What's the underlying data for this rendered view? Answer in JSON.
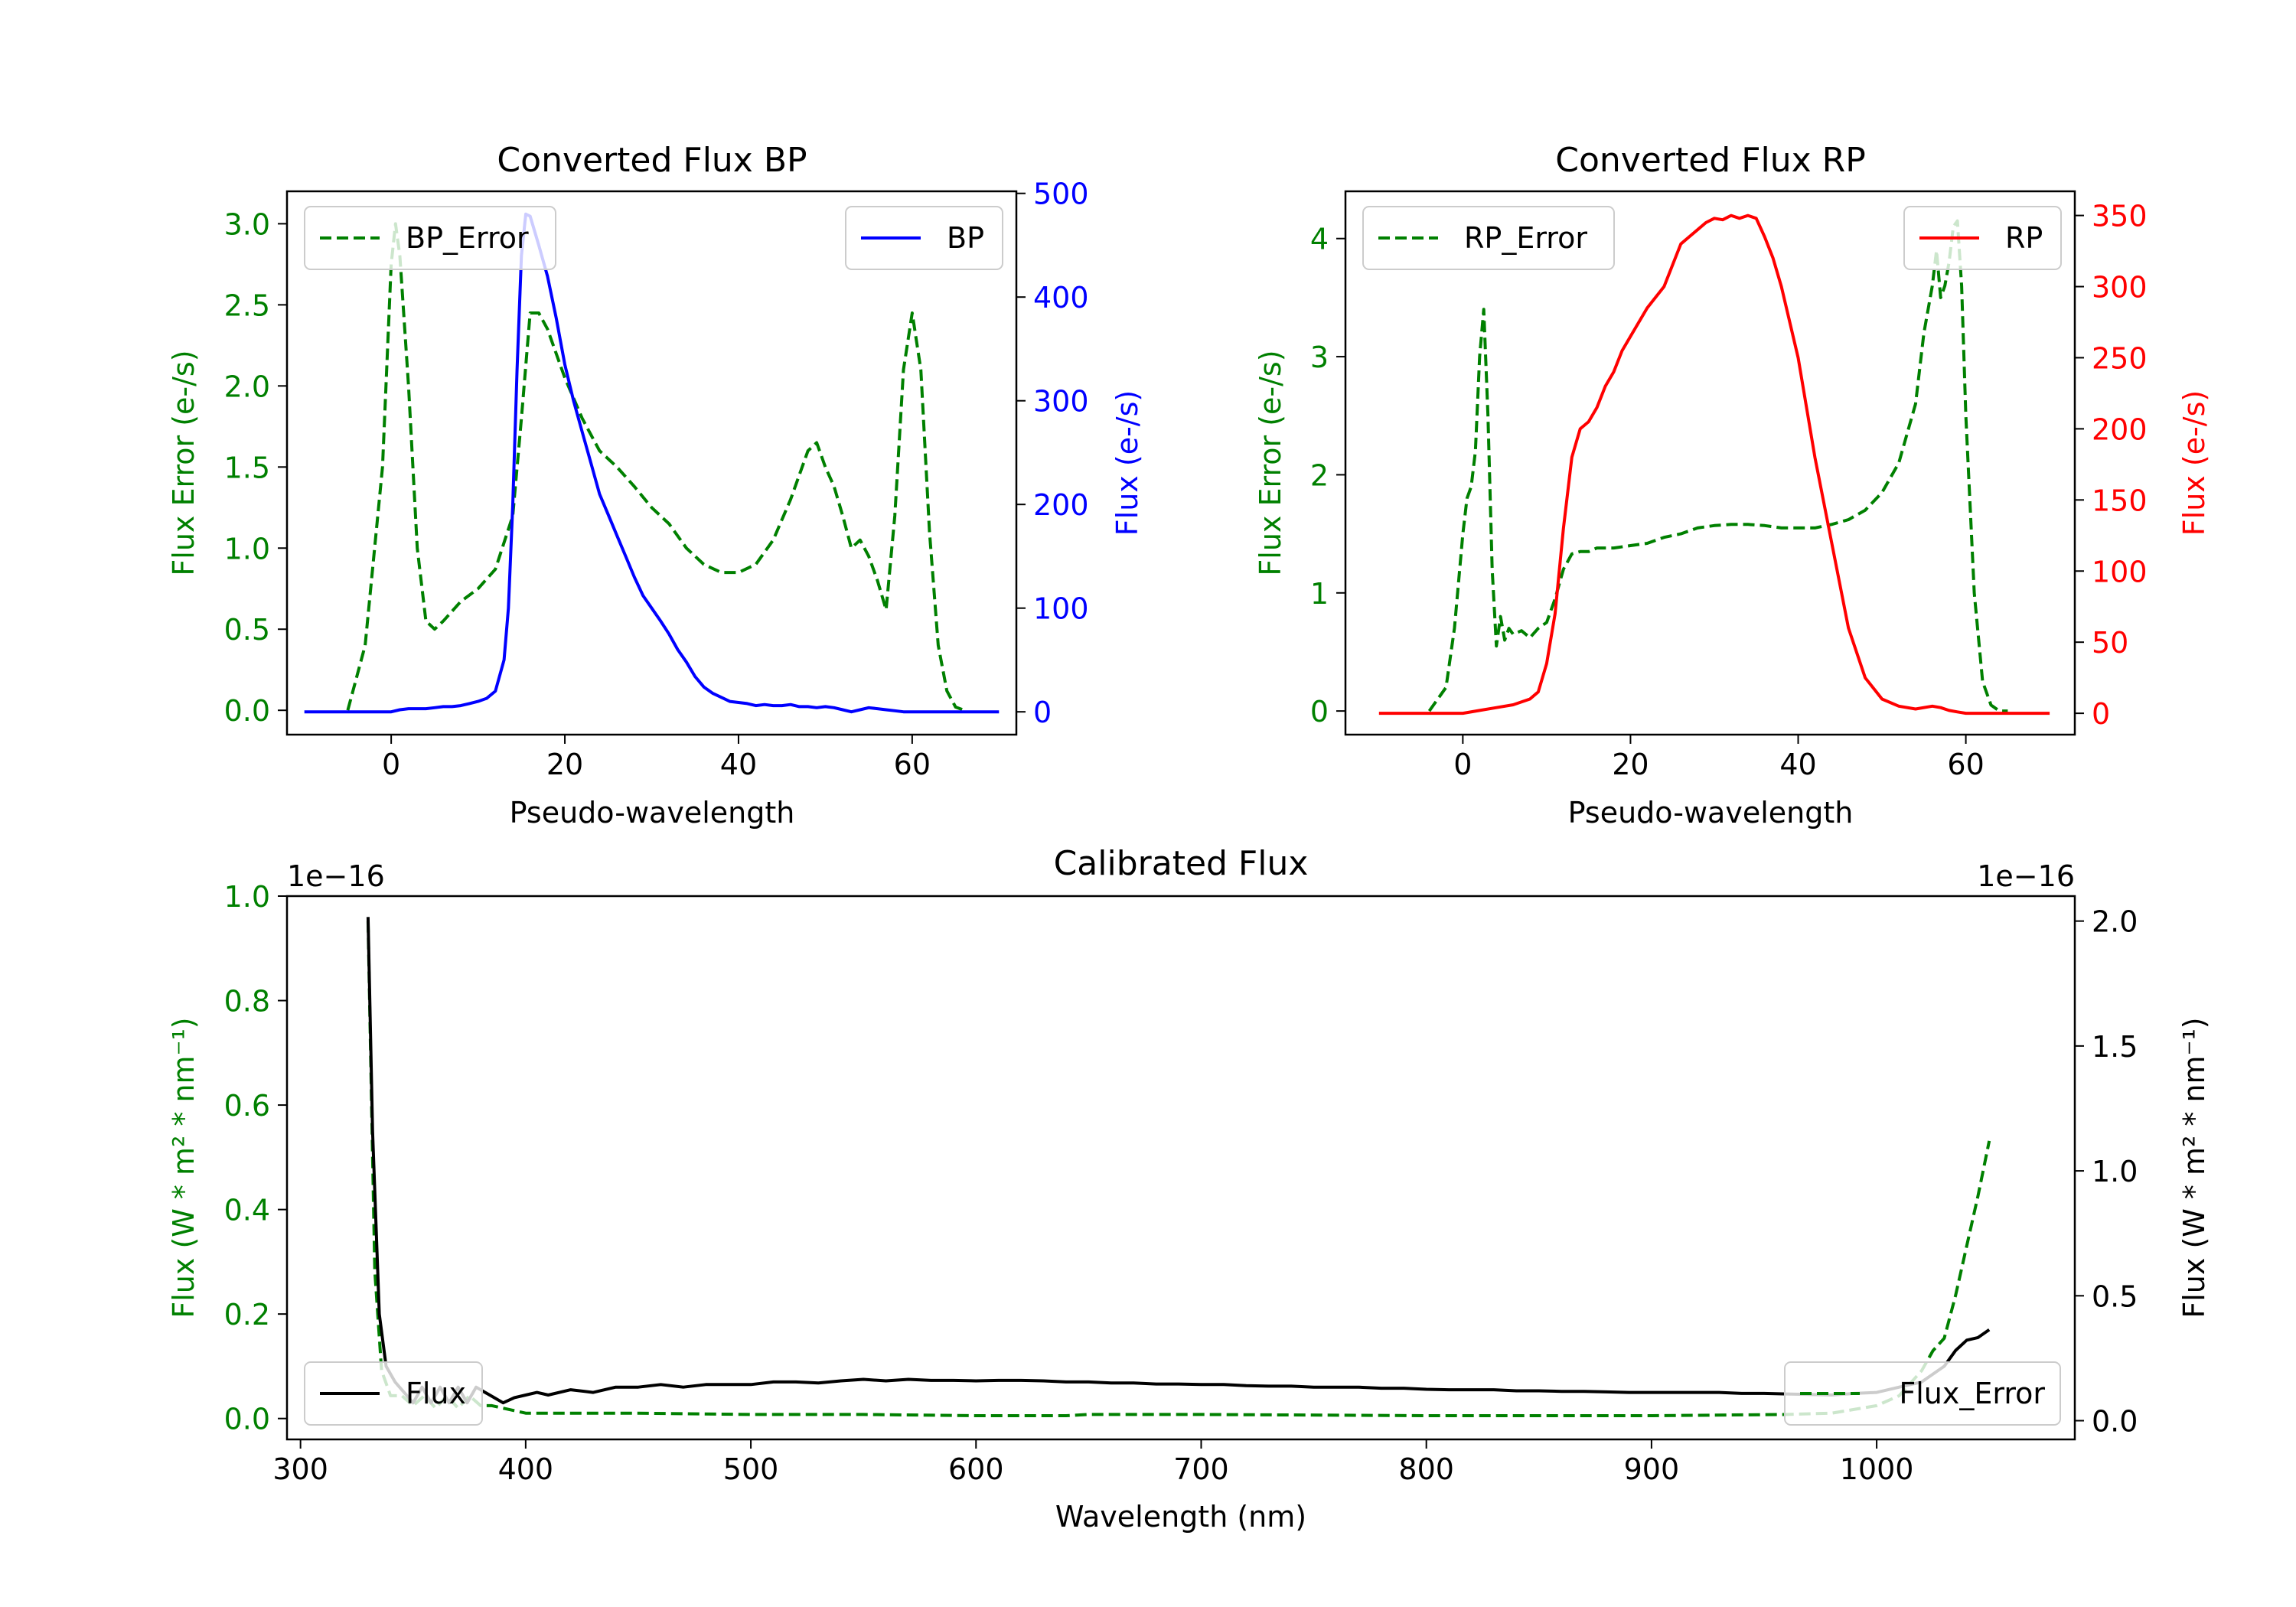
{
  "figure": {
    "background": "#ffffff"
  },
  "colors": {
    "green": "#008000",
    "blue": "#0000ff",
    "red": "#ff0000",
    "black": "#000000"
  },
  "chart_data": [
    {
      "id": "bp",
      "type": "line",
      "title": "Converted Flux BP",
      "xlabel": "Pseudo-wavelength",
      "ylabel_left": "Flux Error (e-/s)",
      "ylabel_right": "Flux (e-/s)",
      "xlim": [
        -12,
        72
      ],
      "ylim_left": [
        -0.15,
        3.2
      ],
      "ylim_right": [
        -22,
        502
      ],
      "xticks": [
        0,
        20,
        40,
        60
      ],
      "yticks_left": [
        0.0,
        0.5,
        1.0,
        1.5,
        2.0,
        2.5,
        3.0
      ],
      "yticks_right": [
        0,
        100,
        200,
        300,
        400,
        500
      ],
      "left_color": "#008000",
      "right_color": "#0000ff",
      "series": [
        {
          "name": "BP_Error",
          "axis": "left",
          "style": "dashed",
          "color": "#008000",
          "x": [
            -5,
            -3,
            -1,
            0,
            0.5,
            1,
            2,
            3,
            4,
            5,
            6,
            8,
            10,
            12,
            14,
            15,
            16,
            17,
            18,
            20,
            22,
            24,
            26,
            28,
            30,
            32,
            34,
            36,
            38,
            40,
            42,
            44,
            46,
            48,
            49,
            50,
            51,
            52,
            53,
            54,
            55,
            56,
            57,
            58,
            59,
            60,
            61,
            62,
            63,
            64,
            65,
            66
          ],
          "y": [
            0.0,
            0.4,
            1.5,
            2.75,
            3.0,
            2.8,
            2.0,
            1.0,
            0.55,
            0.5,
            0.55,
            0.67,
            0.75,
            0.87,
            1.2,
            1.8,
            2.45,
            2.45,
            2.35,
            2.05,
            1.8,
            1.6,
            1.5,
            1.38,
            1.25,
            1.15,
            1.0,
            0.9,
            0.85,
            0.85,
            0.9,
            1.05,
            1.3,
            1.6,
            1.65,
            1.5,
            1.38,
            1.2,
            1.0,
            1.05,
            0.95,
            0.8,
            0.62,
            1.2,
            2.1,
            2.45,
            2.1,
            1.1,
            0.4,
            0.12,
            0.02,
            0.0
          ]
        },
        {
          "name": "BP",
          "axis": "right",
          "style": "solid",
          "color": "#0000ff",
          "x": [
            -10,
            -5,
            -2,
            0,
            1,
            2,
            3,
            4,
            5,
            6,
            7,
            8,
            9,
            10,
            11,
            12,
            13,
            13.5,
            14,
            14.5,
            15,
            15.5,
            16,
            17,
            18,
            19,
            20,
            21,
            22,
            23,
            24,
            25,
            26,
            27,
            28,
            29,
            30,
            31,
            32,
            33,
            34,
            35,
            36,
            37,
            38,
            39,
            40,
            41,
            42,
            43,
            44,
            45,
            46,
            47,
            48,
            49,
            50,
            51,
            52,
            53,
            54,
            55,
            56,
            57,
            58,
            59,
            60,
            62,
            64,
            66,
            68,
            70
          ],
          "y": [
            0,
            0,
            0,
            0,
            2,
            3,
            3,
            3,
            4,
            5,
            5,
            6,
            8,
            10,
            13,
            20,
            50,
            100,
            200,
            330,
            440,
            480,
            478,
            450,
            420,
            380,
            335,
            300,
            270,
            240,
            210,
            190,
            170,
            150,
            130,
            112,
            100,
            88,
            75,
            60,
            48,
            34,
            24,
            18,
            14,
            10,
            9,
            8,
            6,
            7,
            6,
            6,
            7,
            5,
            5,
            4,
            5,
            4,
            2,
            0,
            2,
            4,
            3,
            2,
            1,
            0,
            0,
            0,
            0,
            0,
            0,
            0
          ]
        }
      ],
      "legends": [
        {
          "label": "BP_Error",
          "loc": "upper left"
        },
        {
          "label": "BP",
          "loc": "upper right"
        }
      ]
    },
    {
      "id": "rp",
      "type": "line",
      "title": "Converted Flux RP",
      "xlabel": "Pseudo-wavelength",
      "ylabel_left": "Flux Error (e-/s)",
      "ylabel_right": "Flux (e-/s)",
      "xlim": [
        -14,
        73
      ],
      "ylim_left": [
        -0.2,
        4.4
      ],
      "ylim_right": [
        -15,
        367
      ],
      "xticks": [
        0,
        20,
        40,
        60
      ],
      "yticks_left": [
        0,
        1,
        2,
        3,
        4
      ],
      "yticks_right": [
        0,
        50,
        100,
        150,
        200,
        250,
        300,
        350
      ],
      "left_color": "#008000",
      "right_color": "#ff0000",
      "series": [
        {
          "name": "RP_Error",
          "axis": "left",
          "style": "dashed",
          "color": "#008000",
          "x": [
            -4,
            -2,
            -1,
            0,
            0.5,
            1,
            1.5,
            2,
            2.5,
            3,
            3.5,
            4,
            4.5,
            5,
            5.5,
            6,
            7,
            8,
            9,
            10,
            11,
            12,
            13,
            14,
            15,
            16,
            18,
            20,
            22,
            24,
            26,
            28,
            30,
            32,
            34,
            36,
            38,
            40,
            42,
            44,
            46,
            48,
            50,
            52,
            54,
            55,
            56,
            56.5,
            57,
            57.5,
            58,
            58.5,
            59,
            59.5,
            60,
            61,
            62,
            63,
            64,
            65
          ],
          "y": [
            0,
            0.2,
            0.7,
            1.5,
            1.8,
            1.9,
            2.2,
            3.0,
            3.4,
            2.5,
            1.2,
            0.55,
            0.8,
            0.6,
            0.7,
            0.65,
            0.68,
            0.62,
            0.7,
            0.75,
            0.95,
            1.2,
            1.33,
            1.35,
            1.35,
            1.38,
            1.38,
            1.4,
            1.42,
            1.47,
            1.5,
            1.55,
            1.57,
            1.58,
            1.58,
            1.57,
            1.55,
            1.55,
            1.55,
            1.58,
            1.62,
            1.7,
            1.85,
            2.1,
            2.6,
            3.2,
            3.6,
            3.9,
            3.5,
            3.6,
            3.8,
            4.1,
            4.15,
            3.6,
            2.5,
            1.0,
            0.25,
            0.05,
            0.0,
            0.0
          ]
        },
        {
          "name": "RP",
          "axis": "right",
          "style": "solid",
          "color": "#ff0000",
          "x": [
            -10,
            -5,
            -2,
            0,
            2,
            4,
            6,
            8,
            9,
            10,
            11,
            12,
            13,
            14,
            15,
            16,
            17,
            18,
            19,
            20,
            22,
            24,
            26,
            27,
            28,
            29,
            30,
            31,
            32,
            33,
            34,
            35,
            36,
            37,
            38,
            40,
            42,
            44,
            46,
            48,
            50,
            52,
            54,
            56,
            57,
            58,
            59,
            60,
            62,
            64,
            66,
            68,
            70
          ],
          "y": [
            0,
            0,
            0,
            0,
            2,
            4,
            6,
            10,
            15,
            35,
            70,
            130,
            180,
            200,
            205,
            215,
            230,
            240,
            255,
            265,
            285,
            300,
            330,
            335,
            340,
            345,
            348,
            347,
            350,
            348,
            350,
            348,
            335,
            320,
            300,
            250,
            180,
            120,
            60,
            25,
            10,
            5,
            3,
            5,
            4,
            2,
            1,
            0,
            0,
            0,
            0,
            0,
            0
          ]
        }
      ],
      "legends": [
        {
          "label": "RP_Error",
          "loc": "upper left"
        },
        {
          "label": "RP",
          "loc": "upper right"
        }
      ]
    },
    {
      "id": "cal",
      "type": "line",
      "title": "Calibrated Flux",
      "xlabel": "Wavelength (nm)",
      "ylabel_left": "Flux (W * m² * nm⁻¹)",
      "ylabel_right": "Flux (W * m² * nm⁻¹)",
      "xlim": [
        294,
        1088
      ],
      "ylim_left": [
        -0.04,
        1.0
      ],
      "ylim_right": [
        -0.075,
        2.1
      ],
      "xticks": [
        300,
        400,
        500,
        600,
        700,
        800,
        900,
        1000
      ],
      "yticks_left": [
        0.0,
        0.2,
        0.4,
        0.6,
        0.8,
        1.0
      ],
      "yticks_right": [
        0.0,
        0.5,
        1.0,
        1.5,
        2.0
      ],
      "left_offset": "1e−16",
      "right_offset": "1e−16",
      "left_color": "#008000",
      "right_color": "#000000",
      "series": [
        {
          "name": "Flux_Error",
          "axis": "right",
          "style": "dashed",
          "color": "#008000",
          "x": [
            330,
            333,
            336,
            340,
            345,
            350,
            355,
            360,
            365,
            370,
            375,
            380,
            385,
            390,
            400,
            420,
            450,
            500,
            550,
            600,
            640,
            650,
            700,
            800,
            900,
            960,
            980,
            1000,
            1010,
            1020,
            1025,
            1030,
            1035,
            1040,
            1045,
            1050
          ],
          "y": [
            2.0,
            0.6,
            0.2,
            0.1,
            0.1,
            0.06,
            0.1,
            0.05,
            0.1,
            0.05,
            0.1,
            0.06,
            0.06,
            0.05,
            0.03,
            0.03,
            0.03,
            0.025,
            0.025,
            0.02,
            0.02,
            0.025,
            0.025,
            0.02,
            0.02,
            0.025,
            0.03,
            0.06,
            0.1,
            0.2,
            0.28,
            0.33,
            0.5,
            0.7,
            0.9,
            1.12
          ]
        },
        {
          "name": "Flux",
          "axis": "left",
          "style": "solid",
          "color": "#000000",
          "x": [
            330,
            332,
            335,
            338,
            342,
            346,
            350,
            354,
            358,
            362,
            366,
            370,
            374,
            378,
            382,
            386,
            390,
            395,
            400,
            405,
            410,
            420,
            430,
            440,
            450,
            460,
            470,
            480,
            490,
            500,
            510,
            520,
            530,
            540,
            550,
            560,
            570,
            580,
            590,
            600,
            610,
            620,
            630,
            640,
            650,
            660,
            670,
            680,
            690,
            700,
            710,
            720,
            730,
            740,
            750,
            760,
            770,
            780,
            790,
            800,
            810,
            820,
            830,
            840,
            850,
            860,
            870,
            880,
            890,
            900,
            910,
            920,
            930,
            940,
            950,
            960,
            970,
            980,
            990,
            1000,
            1010,
            1020,
            1030,
            1035,
            1040,
            1045,
            1050
          ],
          "y": [
            0.96,
            0.55,
            0.2,
            0.1,
            0.07,
            0.05,
            0.03,
            0.06,
            0.03,
            0.06,
            0.03,
            0.06,
            0.03,
            0.06,
            0.05,
            0.04,
            0.03,
            0.04,
            0.045,
            0.05,
            0.045,
            0.055,
            0.05,
            0.06,
            0.06,
            0.065,
            0.06,
            0.065,
            0.065,
            0.065,
            0.07,
            0.07,
            0.068,
            0.072,
            0.075,
            0.072,
            0.075,
            0.073,
            0.073,
            0.072,
            0.073,
            0.073,
            0.072,
            0.07,
            0.07,
            0.068,
            0.068,
            0.066,
            0.066,
            0.065,
            0.065,
            0.063,
            0.062,
            0.062,
            0.06,
            0.06,
            0.06,
            0.058,
            0.058,
            0.056,
            0.055,
            0.055,
            0.055,
            0.053,
            0.053,
            0.052,
            0.052,
            0.051,
            0.05,
            0.05,
            0.05,
            0.05,
            0.05,
            0.048,
            0.048,
            0.047,
            0.046,
            0.045,
            0.048,
            0.05,
            0.06,
            0.07,
            0.1,
            0.13,
            0.15,
            0.155,
            0.17
          ]
        }
      ],
      "legends": [
        {
          "label": "Flux",
          "loc": "lower left"
        },
        {
          "label": "Flux_Error",
          "loc": "lower right"
        }
      ]
    }
  ]
}
